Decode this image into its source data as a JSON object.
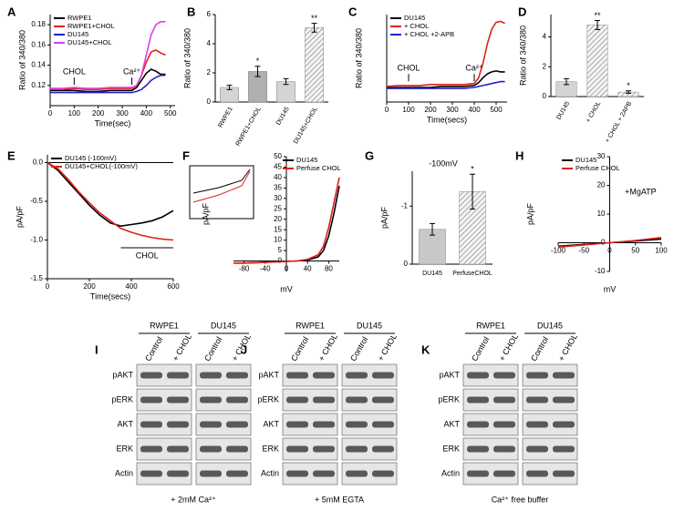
{
  "chart_data": [
    {
      "panel": "A",
      "type": "line",
      "xlabel": "Time(sec)",
      "ylabel": "Ratio of 340/380",
      "x": [
        0,
        50,
        100,
        150,
        200,
        250,
        300,
        340,
        360,
        380,
        400,
        420,
        440,
        460,
        480
      ],
      "xlim": [
        0,
        520
      ],
      "xticks": [
        0,
        100,
        200,
        300,
        400,
        500
      ],
      "ylim": [
        0.1,
        0.19
      ],
      "yticks": [
        0.12,
        0.14,
        0.16,
        0.18
      ],
      "legend": "upper left",
      "series": [
        {
          "name": "RWPE1",
          "color": "#000000",
          "values": [
            0.115,
            0.115,
            0.115,
            0.114,
            0.114,
            0.115,
            0.115,
            0.115,
            0.118,
            0.125,
            0.132,
            0.136,
            0.134,
            0.131,
            0.131
          ]
        },
        {
          "name": "RWPE1+CHOL",
          "color": "#e0201b",
          "values": [
            0.116,
            0.116,
            0.117,
            0.116,
            0.116,
            0.117,
            0.117,
            0.117,
            0.12,
            0.13,
            0.143,
            0.153,
            0.155,
            0.152,
            0.15
          ]
        },
        {
          "name": "DU145",
          "color": "#2222cc",
          "values": [
            0.113,
            0.113,
            0.113,
            0.113,
            0.113,
            0.113,
            0.113,
            0.113,
            0.114,
            0.116,
            0.12,
            0.125,
            0.128,
            0.13,
            0.13
          ]
        },
        {
          "name": "DU145+CHOL",
          "color": "#e040e0",
          "values": [
            0.117,
            0.117,
            0.118,
            0.117,
            0.117,
            0.118,
            0.118,
            0.118,
            0.12,
            0.13,
            0.15,
            0.17,
            0.18,
            0.183,
            0.183
          ]
        }
      ],
      "annotations": [
        {
          "text": "CHOL",
          "x": 100,
          "y": 0.126,
          "style": "arrow"
        },
        {
          "text": "Ca²⁺",
          "x": 340,
          "y": 0.126,
          "style": "arrow"
        }
      ]
    },
    {
      "panel": "B",
      "type": "bar",
      "ylabel": "Ratio of 340/380",
      "categories": [
        "RWPE1",
        "RWPE1+CHOL",
        "DU145",
        "DU145+CHOL"
      ],
      "values": [
        1.0,
        2.1,
        1.4,
        5.1
      ],
      "errors": [
        0.15,
        0.35,
        0.2,
        0.3
      ],
      "markers": [
        null,
        "*",
        null,
        "**"
      ],
      "colors": [
        "#d4d4d4",
        "#b0b0b0",
        "#d4d4d4",
        "#eeeeee"
      ],
      "hatched": [
        false,
        false,
        false,
        true
      ],
      "ylim": [
        0,
        6
      ],
      "yticks": [
        0,
        2,
        4,
        6
      ]
    },
    {
      "panel": "C",
      "type": "line",
      "xlabel": "Time(secs)",
      "ylabel": "Ratio of 340/380",
      "x": [
        0,
        50,
        100,
        150,
        200,
        250,
        300,
        350,
        400,
        420,
        440,
        460,
        480,
        500,
        520,
        540
      ],
      "xlim": [
        0,
        550
      ],
      "xticks": [
        0,
        100,
        200,
        300,
        400,
        500
      ],
      "ylim": [
        0.1,
        0.19
      ],
      "legend": "upper left",
      "series": [
        {
          "name": "DU145",
          "color": "#000000",
          "values": [
            0.115,
            0.115,
            0.115,
            0.115,
            0.115,
            0.116,
            0.116,
            0.116,
            0.117,
            0.12,
            0.125,
            0.129,
            0.131,
            0.132,
            0.131,
            0.131
          ]
        },
        {
          "name": "+ CHOL",
          "color": "#e0201b",
          "values": [
            0.116,
            0.117,
            0.117,
            0.117,
            0.118,
            0.118,
            0.118,
            0.118,
            0.119,
            0.125,
            0.14,
            0.16,
            0.175,
            0.182,
            0.183,
            0.181
          ]
        },
        {
          "name": "+ CHOL +2-APB",
          "color": "#2222cc",
          "values": [
            0.114,
            0.114,
            0.114,
            0.114,
            0.114,
            0.114,
            0.114,
            0.114,
            0.115,
            0.116,
            0.117,
            0.118,
            0.119,
            0.12,
            0.121,
            0.121
          ]
        }
      ],
      "annotations": [
        {
          "text": "CHOL",
          "x": 100,
          "y": 0.127,
          "style": "arrow"
        },
        {
          "text": "Ca²⁺",
          "x": 400,
          "y": 0.127,
          "style": "arrow"
        }
      ]
    },
    {
      "panel": "D",
      "type": "bar",
      "ylabel": "Ratio of 340/380",
      "categories": [
        "DU145",
        "+ CHOL",
        "+ CHOL + 2APB"
      ],
      "values": [
        1.0,
        4.8,
        0.3
      ],
      "errors": [
        0.2,
        0.3,
        0.08
      ],
      "markers": [
        null,
        "**",
        "*"
      ],
      "colors": [
        "#d4d4d4",
        "#eeeeee",
        "#eeeeee"
      ],
      "hatched": [
        false,
        true,
        true
      ],
      "ylim": [
        0,
        5.5
      ],
      "yticks": [
        0,
        2,
        4
      ]
    },
    {
      "panel": "E",
      "type": "line",
      "xlabel": "Time(secs)",
      "ylabel": "pA/pF",
      "x": [
        0,
        50,
        100,
        150,
        200,
        250,
        300,
        350,
        400,
        450,
        500,
        550,
        600
      ],
      "xlim": [
        0,
        600
      ],
      "xticks": [
        0,
        200,
        400,
        600
      ],
      "ylim": [
        -1.5,
        0.1
      ],
      "yticks": [
        {
          "value": 0,
          "label": "0.0"
        },
        -0.5,
        {
          "value": -1,
          "label": "-1.0"
        },
        -1.5
      ],
      "axis_at_top": true,
      "legend": "upper left",
      "series": [
        {
          "name": "DU145 (-100mV)",
          "color": "#000000",
          "values": [
            0,
            -0.1,
            -0.25,
            -0.4,
            -0.55,
            -0.68,
            -0.78,
            -0.82,
            -0.8,
            -0.78,
            -0.75,
            -0.7,
            -0.62
          ]
        },
        {
          "name": "DU145+CHOL(-100mV)",
          "color": "#e0201b",
          "values": [
            0,
            -0.08,
            -0.22,
            -0.38,
            -0.52,
            -0.65,
            -0.75,
            -0.85,
            -0.9,
            -0.94,
            -0.97,
            -0.99,
            -1.0
          ]
        }
      ],
      "annotations": [
        {
          "text": "CHOL",
          "x": [
            350,
            600
          ],
          "y": -1.1,
          "style": "bar"
        }
      ]
    },
    {
      "panel": "F",
      "type": "line",
      "xlabel": "mV",
      "ylabel": "pA/pF",
      "x": [
        -100,
        -80,
        -60,
        -40,
        -20,
        0,
        20,
        40,
        60,
        70,
        80,
        90,
        100
      ],
      "xlim": [
        -100,
        100
      ],
      "xticks": [
        -80,
        -40,
        0,
        40,
        80
      ],
      "ylim": [
        -5,
        50
      ],
      "yticks": [
        0,
        5,
        10,
        15,
        20,
        25,
        30,
        35,
        40,
        45,
        50
      ],
      "origin_axes": true,
      "legend": "upper right",
      "series": [
        {
          "name": "DU145",
          "color": "#000000",
          "values": [
            -1,
            -1,
            -0.8,
            -0.6,
            -0.4,
            -0.2,
            0,
            0.5,
            2,
            5,
            12,
            23,
            36
          ]
        },
        {
          "name": "Perfuse CHOL",
          "color": "#e0201b",
          "values": [
            -1,
            -1,
            -0.8,
            -0.6,
            -0.4,
            -0.2,
            0,
            0.8,
            3,
            7,
            16,
            28,
            40
          ]
        }
      ]
    },
    {
      "panel": "G",
      "type": "bar",
      "title": "-100mV",
      "ylabel": "pA/pF",
      "categories": [
        "DU145",
        "PerfuseCHOL"
      ],
      "values": [
        -0.6,
        -1.25
      ],
      "errors": [
        0.1,
        0.3
      ],
      "markers": [
        null,
        "*"
      ],
      "colors": [
        "#c8c8c8",
        "#eeeeee"
      ],
      "hatched": [
        false,
        true
      ],
      "ylim": [
        0,
        -1.6
      ],
      "yticks": [
        0,
        -1
      ]
    },
    {
      "panel": "H",
      "type": "line",
      "xlabel": "mV",
      "ylabel": "pA/pF",
      "x": [
        -100,
        -50,
        0,
        50,
        100
      ],
      "xlim": [
        -100,
        100
      ],
      "xticks": [
        -100,
        -50,
        0,
        50,
        100
      ],
      "ylim": [
        -10,
        30
      ],
      "yticks": [
        -10,
        0,
        10,
        20,
        30
      ],
      "origin_axes": true,
      "legend": "upper left",
      "series": [
        {
          "name": "DU145",
          "color": "#000000",
          "values": [
            -1.2,
            -0.6,
            0,
            0.6,
            1.3
          ]
        },
        {
          "name": "Perfuse CHOL",
          "color": "#e0201b",
          "values": [
            -1.5,
            -0.8,
            0,
            0.8,
            1.8
          ]
        }
      ],
      "annotations": [
        {
          "text": "+MgATP",
          "x": 60,
          "y": 15,
          "style": "text"
        }
      ]
    }
  ],
  "blots": [
    {
      "panel": "I",
      "groups": [
        "RWPE1",
        "DU145"
      ],
      "lanes": [
        "Control",
        "+ CHOL"
      ],
      "rows": [
        "pAKT",
        "pERK",
        "AKT",
        "ERK",
        "Actin"
      ],
      "caption": "+ 2mM Ca²⁺"
    },
    {
      "panel": "J",
      "groups": [
        "RWPE1",
        "DU145"
      ],
      "lanes": [
        "Control",
        "+ CHOL"
      ],
      "rows": [
        "pAKT",
        "pERK",
        "AKT",
        "ERK",
        "Actin"
      ],
      "caption": "+ 5mM EGTA"
    },
    {
      "panel": "K",
      "groups": [
        "RWPE1",
        "DU145"
      ],
      "lanes": [
        "Control",
        "+ CHOL"
      ],
      "rows": [
        "pAKT",
        "pERK",
        "AKT",
        "ERK",
        "Actin"
      ],
      "caption": "Ca²⁺ free buffer"
    }
  ]
}
